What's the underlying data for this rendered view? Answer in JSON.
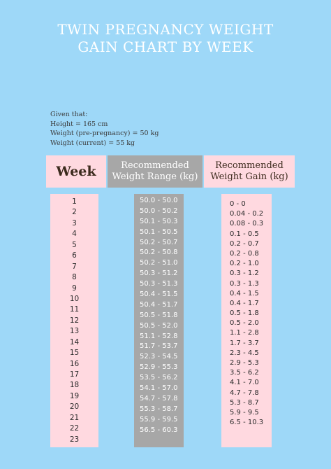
{
  "title": {
    "line1": "TWIN PREGNANCY WEIGHT",
    "line2": "GAIN CHART BY WEEK"
  },
  "given": {
    "heading": "Given that:",
    "height": "Height = 165 cm",
    "pre_weight": "Weight (pre-pregnancy) = 50 kg",
    "current_weight": "Weight (current) = 55 kg"
  },
  "headers": {
    "week": "Week",
    "range_line1": "Recommended",
    "range_line2": "Weight Range (kg)",
    "gain_line1": "Recommended",
    "gain_line2": "Weight Gain (kg)"
  },
  "weeks": [
    "1",
    "2",
    "3",
    "4",
    "5",
    "6",
    "7",
    "8",
    "9",
    "10",
    "11",
    "12",
    "13",
    "14",
    "15",
    "16",
    "17",
    "18",
    "19",
    "20",
    "21",
    "22",
    "23"
  ],
  "ranges": [
    "50.0 - 50.0",
    "50.0 - 50.2",
    "50.1 - 50.3",
    "50.1 - 50.5",
    "50.2 - 50.7",
    "50.2 - 50.8",
    "50.2 - 51.0",
    "50.3 - 51.2",
    "50.3 - 51.3",
    "50.4 - 51.5",
    "50.4 - 51.7",
    "50.5 - 51.8",
    "50.5 - 52.0",
    "51.1 - 52.8",
    "51.7 - 53.7",
    "52.3 - 54.5",
    "52.9 - 55.3",
    "53.5 - 56.2",
    "54.1 - 57.0",
    "54.7 - 57.8",
    "55.3 - 58.7",
    "55.9 - 59.5",
    "56.5 - 60.3"
  ],
  "gains": [
    "0 - 0",
    "0.04 - 0.2",
    "0.08 - 0.3",
    "0.1 - 0.5",
    "0.2 - 0.7",
    "0.2 - 0.8",
    "0.2 - 1.0",
    "0.3 - 1.2",
    "0.3 - 1.3",
    "0.4 - 1.5",
    "0.4 - 1.7",
    "0.5 - 1.8",
    "0.5 - 2.0",
    "1.1 - 2.8",
    "1.7 - 3.7",
    "2.3 - 4.5",
    "2.9 - 5.3",
    "3.5 - 6.2",
    "4.1 - 7.0",
    "4.7 - 7.8",
    "5.3 - 8.7",
    "5.9 - 9.5",
    "6.5 - 10.3"
  ],
  "colors": {
    "background": "#9ed8f8",
    "pink": "#ffd9e0",
    "grey": "#a7a7a7"
  }
}
